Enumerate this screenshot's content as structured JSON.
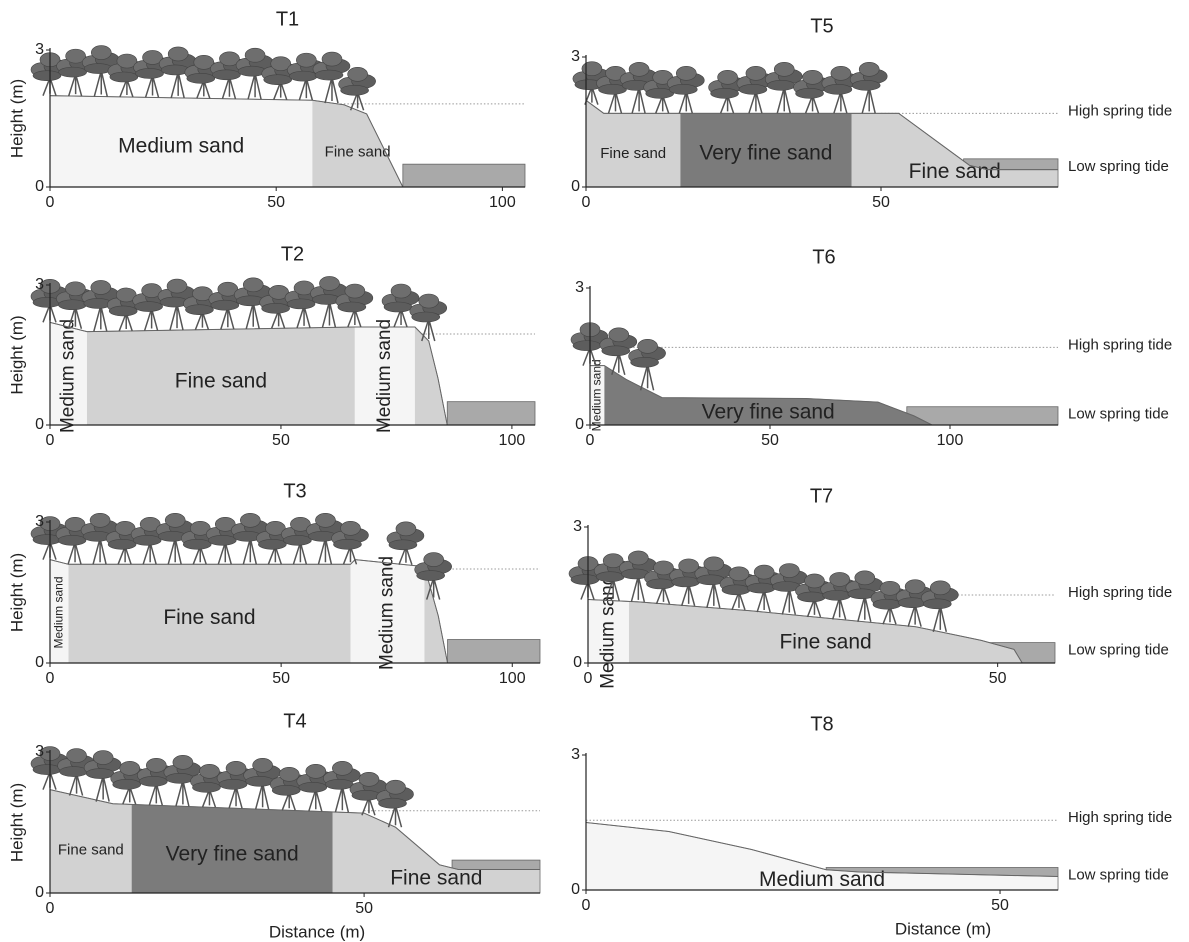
{
  "chart_data": [
    {
      "type": "profile",
      "title": "T1",
      "ylabel": "Height (m)",
      "xlim": [
        0,
        105
      ],
      "ylim": [
        0,
        3
      ],
      "xticks": [
        0,
        50,
        100
      ],
      "yticks": [
        0,
        3
      ],
      "surface": {
        "x": [
          0,
          58,
          65,
          70,
          75,
          78
        ],
        "y": [
          2.0,
          1.9,
          1.8,
          1.6,
          0.6,
          0
        ]
      },
      "zones": [
        {
          "label": "Medium sand",
          "from": 0,
          "to": 58,
          "color": "#f5f5f5"
        },
        {
          "label": "Fine sand",
          "from": 58,
          "to": 78,
          "color": "#d2d2d2"
        }
      ],
      "sea": {
        "from": 78,
        "level": 0.5,
        "color": "#a9a9a9"
      },
      "high_tide": {
        "from": 58,
        "level": 1.82
      },
      "mangroves": [
        [
          0,
          68
        ]
      ]
    },
    {
      "type": "profile",
      "title": "T2",
      "ylabel": "Height (m)",
      "xlim": [
        0,
        105
      ],
      "ylim": [
        0,
        3
      ],
      "xticks": [
        0,
        50,
        100
      ],
      "yticks": [
        0,
        3
      ],
      "surface": {
        "x": [
          0,
          8,
          66,
          79,
          82,
          84,
          86
        ],
        "y": [
          2.2,
          2.0,
          2.1,
          2.1,
          1.8,
          1.0,
          0
        ]
      },
      "zones": [
        {
          "label": "Medium sand",
          "from": 0,
          "to": 8,
          "color": "#f5f5f5",
          "orientation": "vertical"
        },
        {
          "label": "Fine sand",
          "from": 8,
          "to": 66,
          "color": "#d2d2d2"
        },
        {
          "label": "Medium sand",
          "from": 66,
          "to": 79,
          "color": "#f5f5f5",
          "orientation": "vertical"
        },
        {
          "from": 79,
          "to": 86,
          "color": "#d2d2d2"
        }
      ],
      "sea": {
        "from": 86,
        "level": 0.5,
        "color": "#a9a9a9"
      },
      "high_tide": {
        "from": 79,
        "level": 1.95
      },
      "mangroves": [
        [
          0,
          66
        ],
        [
          76,
          82
        ]
      ]
    },
    {
      "type": "profile",
      "title": "T3",
      "ylabel": "Height (m)",
      "xlim": [
        0,
        106
      ],
      "ylim": [
        0,
        3
      ],
      "xticks": [
        0,
        50,
        100
      ],
      "yticks": [
        0,
        3
      ],
      "surface": {
        "x": [
          0,
          4,
          65,
          66,
          81,
          84,
          86
        ],
        "y": [
          2.2,
          2.1,
          2.1,
          2.2,
          2.05,
          1.0,
          0
        ]
      },
      "zones": [
        {
          "label": "Medium sand",
          "from": 0,
          "to": 4,
          "color": "#f5f5f5",
          "orientation": "vertical"
        },
        {
          "label": "Fine sand",
          "from": 4,
          "to": 65,
          "color": "#d2d2d2"
        },
        {
          "label": "Medium sand",
          "from": 65,
          "to": 81,
          "color": "#f5f5f5",
          "orientation": "vertical"
        },
        {
          "from": 81,
          "to": 86,
          "color": "#d2d2d2"
        }
      ],
      "sea": {
        "from": 86,
        "level": 0.5,
        "color": "#a9a9a9"
      },
      "high_tide": {
        "from": 81,
        "level": 2.0
      },
      "mangroves": [
        [
          0,
          65
        ],
        [
          77,
          83
        ]
      ]
    },
    {
      "type": "profile",
      "title": "T4",
      "ylabel": "Height (m)",
      "xlabel": "Distance (m)",
      "xlim": [
        0,
        78
      ],
      "ylim": [
        0,
        3
      ],
      "xticks": [
        0,
        50
      ],
      "yticks": [
        0,
        3
      ],
      "surface": {
        "x": [
          0,
          10,
          50,
          55,
          62,
          65,
          78
        ],
        "y": [
          2.2,
          1.9,
          1.7,
          1.4,
          0.6,
          0.5,
          0.5
        ]
      },
      "zones": [
        {
          "label": "Fine sand",
          "from": 0,
          "to": 13,
          "color": "#d2d2d2"
        },
        {
          "label": "Very fine sand",
          "from": 13,
          "to": 45,
          "color": "#7b7b7b"
        },
        {
          "label": "Fine sand",
          "from": 45,
          "to": 78,
          "color": "#d2d2d2"
        }
      ],
      "sea": {
        "from": 64,
        "level": 0.7,
        "color": "#a9a9a9"
      },
      "high_tide": {
        "from": 50,
        "level": 1.75
      },
      "mangroves": [
        [
          0,
          55
        ]
      ]
    },
    {
      "type": "profile",
      "title": "T5",
      "xlim": [
        0,
        80
      ],
      "ylim": [
        0,
        3
      ],
      "xticks": [
        0,
        50
      ],
      "yticks": [
        0,
        3
      ],
      "surface": {
        "x": [
          0,
          3,
          53,
          60,
          65,
          68,
          80
        ],
        "y": [
          2.0,
          1.7,
          1.7,
          1.0,
          0.5,
          0.4,
          0.4
        ]
      },
      "zones": [
        {
          "label": "Fine sand",
          "from": 0,
          "to": 16,
          "color": "#d2d2d2"
        },
        {
          "label": "Very fine sand",
          "from": 16,
          "to": 45,
          "color": "#7b7b7b"
        },
        {
          "label": "Fine sand",
          "from": 45,
          "to": 80,
          "color": "#d2d2d2"
        }
      ],
      "sea": {
        "from": 64,
        "level": 0.65,
        "color": "#a9a9a9",
        "label": "Low spring tide"
      },
      "high_tide": {
        "from": 50,
        "level": 1.7,
        "label": "High spring tide"
      },
      "mangroves": [
        [
          1,
          17
        ],
        [
          24,
          48
        ]
      ]
    },
    {
      "type": "profile",
      "title": "T6",
      "xlim": [
        0,
        130
      ],
      "ylim": [
        0,
        3
      ],
      "xticks": [
        0,
        50,
        100
      ],
      "yticks": [
        0,
        3
      ],
      "surface": {
        "x": [
          0,
          4,
          10,
          20,
          60,
          80,
          90,
          95
        ],
        "y": [
          1.3,
          1.3,
          1.0,
          0.6,
          0.58,
          0.5,
          0.2,
          0
        ]
      },
      "zones": [
        {
          "label": "Medium sand",
          "from": 0,
          "to": 4,
          "color": "#f5f5f5",
          "orientation": "vertical"
        },
        {
          "label": "Very fine sand",
          "from": 4,
          "to": 95,
          "color": "#7b7b7b"
        }
      ],
      "sea": {
        "from": 88,
        "level": 0.4,
        "color": "#a9a9a9",
        "label": "Low spring tide"
      },
      "high_tide": {
        "from": 12,
        "level": 1.7,
        "label": "High spring tide"
      },
      "mangroves": [
        [
          0,
          16
        ]
      ]
    },
    {
      "type": "profile",
      "title": "T7",
      "xlim": [
        0,
        57
      ],
      "ylim": [
        0,
        3
      ],
      "xticks": [
        0,
        50
      ],
      "yticks": [
        0,
        3
      ],
      "surface": {
        "x": [
          0,
          6,
          20,
          40,
          48,
          52,
          53
        ],
        "y": [
          1.4,
          1.35,
          1.15,
          0.8,
          0.5,
          0.3,
          0
        ]
      },
      "zones": [
        {
          "label": "Medium sand",
          "from": 0,
          "to": 5,
          "color": "#f5f5f5",
          "orientation": "vertical"
        },
        {
          "label": "Fine sand",
          "from": 5,
          "to": 53,
          "color": "#d2d2d2"
        }
      ],
      "sea": {
        "from": 46,
        "level": 0.45,
        "color": "#a9a9a9",
        "label": "Low spring tide"
      },
      "high_tide": {
        "from": 40,
        "level": 1.5,
        "label": "High spring tide"
      },
      "mangroves": [
        [
          0,
          43
        ]
      ]
    },
    {
      "type": "profile",
      "title": "T8",
      "xlabel": "Distance (m)",
      "xlim": [
        0,
        57
      ],
      "ylim": [
        0,
        3
      ],
      "xticks": [
        0,
        50
      ],
      "yticks": [
        0,
        3
      ],
      "surface": {
        "x": [
          0,
          10,
          20,
          29,
          33,
          45,
          57
        ],
        "y": [
          1.5,
          1.3,
          0.9,
          0.45,
          0.4,
          0.35,
          0.3
        ]
      },
      "zones": [
        {
          "label": "Medium sand",
          "from": 0,
          "to": 57,
          "color": "#f5f5f5"
        }
      ],
      "sea": {
        "from": 29,
        "level": 0.5,
        "color": "#a9a9a9",
        "label": "Low spring tide"
      },
      "high_tide": {
        "from": 0,
        "level": 1.55,
        "label": "High spring tide"
      },
      "mangroves": []
    }
  ]
}
